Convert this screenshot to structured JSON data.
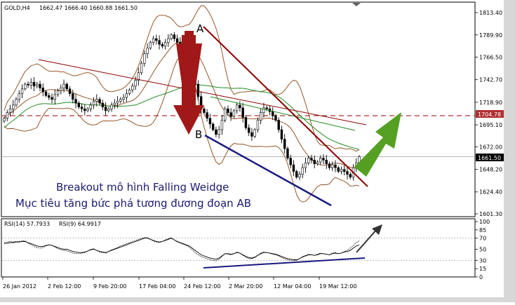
{
  "header": {
    "symbol": "GOLD,H4",
    "ohlc": "1662.47 1666.40 1660.88 1661.50"
  },
  "annotations": {
    "point_a": "A",
    "point_b": "B",
    "line1": "Breakout mô hình Falling Weidge",
    "line2": "Mục tiêu tăng bức phá tương đương đoạn AB"
  },
  "rsi_header": {
    "rsi14": "RSI(14) 57.7933",
    "rsi9": "RSI(9) 64.9917"
  },
  "colors": {
    "candles": "#000000",
    "resistance": "#8b0000",
    "support": "#1a1a80",
    "bollinger": "#8b4513",
    "ma_long": "#228b22",
    "price_level": "#b03030",
    "down_arrow": "#a01818",
    "up_arrow": "#55a022",
    "rsi_arrow": "#333333"
  },
  "chart_data": {
    "type": "candlestick",
    "instrument": "GOLD",
    "timeframe": "H4",
    "x_ticks": [
      "26 Jan 2012",
      "2 Feb 12:00",
      "9 Feb 20:00",
      "17 Feb 04:00",
      "24 Feb 12:00",
      "2 Mar 20:00",
      "12 Mar 04:00",
      "19 Mar 12:00"
    ],
    "y_ticks": [
      1601.3,
      1624.4,
      1648.2,
      1672.0,
      1695.1,
      1718.9,
      1742.7,
      1766.5,
      1789.9,
      1813.4
    ],
    "ylim": [
      1601.3,
      1813.4
    ],
    "price_tags": [
      {
        "label": "1704.78",
        "value": 1704.78
      },
      {
        "label": "1661.50",
        "value": 1661.5
      }
    ],
    "close": [
      1702,
      1708,
      1712,
      1716,
      1722,
      1728,
      1733,
      1738,
      1737,
      1740,
      1736,
      1738,
      1734,
      1730,
      1726,
      1724,
      1722,
      1727,
      1731,
      1734,
      1738,
      1733,
      1728,
      1722,
      1718,
      1714,
      1712,
      1710,
      1712,
      1716,
      1720,
      1722,
      1718,
      1714,
      1710,
      1712,
      1716,
      1718,
      1720,
      1722,
      1724,
      1728,
      1732,
      1736,
      1742,
      1750,
      1760,
      1770,
      1776,
      1782,
      1786,
      1784,
      1780,
      1778,
      1782,
      1786,
      1790,
      1786,
      1782,
      1778,
      1774,
      1770,
      1766,
      1752,
      1738,
      1725,
      1712,
      1708,
      1702,
      1696,
      1690,
      1685,
      1690,
      1700,
      1712,
      1708,
      1704,
      1710,
      1716,
      1713,
      1703,
      1692,
      1687,
      1683,
      1690,
      1700,
      1708,
      1713,
      1712,
      1709,
      1705,
      1700,
      1690,
      1680,
      1670,
      1660,
      1653,
      1646,
      1640,
      1643,
      1650,
      1655,
      1660,
      1658,
      1654,
      1656,
      1660,
      1658,
      1654,
      1650,
      1653,
      1650,
      1646,
      1648,
      1646,
      1643,
      1640,
      1650,
      1655,
      1661.5
    ],
    "series": [
      {
        "name": "RSI(14)",
        "values": [
          60,
          61,
          62,
          62,
          63,
          63,
          64,
          64,
          62,
          60,
          58,
          56,
          55,
          55,
          57,
          58,
          57,
          55,
          53,
          51,
          50,
          50,
          48,
          46,
          45,
          44,
          44,
          45,
          47,
          49,
          50,
          48,
          46,
          45,
          44,
          46,
          48,
          50,
          52,
          54,
          56,
          58,
          60,
          62,
          64,
          66,
          68,
          70,
          70,
          68,
          66,
          64,
          63,
          64,
          66,
          68,
          70,
          67,
          64,
          62,
          60,
          58,
          56,
          52,
          48,
          44,
          40,
          38,
          36,
          34,
          33,
          32,
          34,
          38,
          42,
          42,
          41,
          42,
          44,
          43,
          40,
          37,
          35,
          34,
          36,
          39,
          42,
          44,
          44,
          43,
          42,
          41,
          39,
          37,
          35,
          33,
          32,
          31,
          31,
          33,
          36,
          38,
          40,
          40,
          39,
          40,
          42,
          42,
          41,
          40,
          42,
          43,
          42,
          43,
          45,
          46,
          48,
          52,
          56,
          57.8
        ]
      },
      {
        "name": "RSI(9)",
        "values": [
          62,
          63,
          64,
          63,
          64,
          64,
          65,
          65,
          61,
          58,
          55,
          53,
          52,
          53,
          56,
          58,
          57,
          54,
          51,
          49,
          48,
          47,
          45,
          43,
          42,
          42,
          43,
          44,
          47,
          50,
          51,
          48,
          45,
          44,
          43,
          46,
          49,
          51,
          53,
          56,
          58,
          60,
          62,
          64,
          66,
          68,
          70,
          71,
          71,
          68,
          65,
          63,
          62,
          64,
          67,
          69,
          71,
          67,
          63,
          61,
          59,
          57,
          54,
          49,
          44,
          40,
          37,
          35,
          33,
          31,
          30,
          29,
          32,
          37,
          42,
          41,
          40,
          42,
          45,
          43,
          39,
          36,
          33,
          33,
          35,
          39,
          43,
          45,
          44,
          43,
          41,
          40,
          38,
          35,
          33,
          31,
          30,
          30,
          30,
          33,
          37,
          39,
          41,
          40,
          39,
          41,
          43,
          42,
          41,
          40,
          43,
          44,
          42,
          43,
          46,
          48,
          52,
          57,
          62,
          65.0
        ]
      }
    ],
    "rsi_y_ticks": [
      0,
      15,
      30,
      50,
      70,
      85,
      100
    ],
    "rsi_ylim": [
      0,
      100
    ]
  }
}
